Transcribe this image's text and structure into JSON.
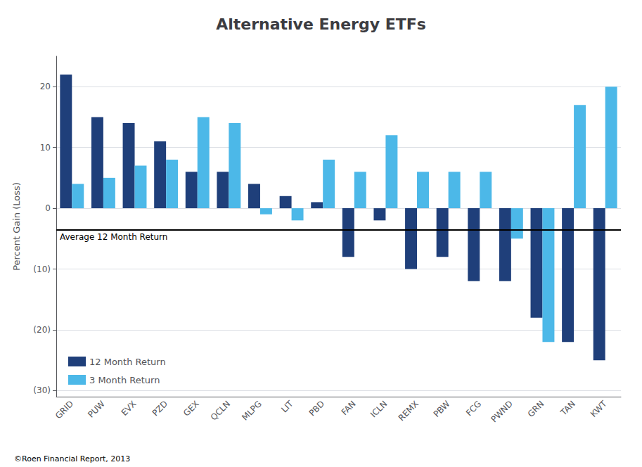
{
  "chart_data": {
    "type": "bar",
    "title": "Alternative Energy ETFs",
    "ylabel": "Percent Gain (Loss)",
    "categories": [
      "GRID",
      "PUW",
      "EVX",
      "PZD",
      "GEX",
      "QCLN",
      "MLPG",
      "LIT",
      "PBD",
      "FAN",
      "ICLN",
      "REMX",
      "PBW",
      "FCG",
      "PWND",
      "GRN",
      "TAN",
      "KWT"
    ],
    "series": [
      {
        "name": "12 Month Return",
        "color": "#1F3F7A",
        "values": [
          22,
          15,
          14,
          11,
          6,
          6,
          4,
          2,
          1,
          -8,
          -2,
          -10,
          -8,
          -12,
          -12,
          -18,
          -22,
          -25
        ]
      },
      {
        "name": "3 Month Return",
        "color": "#4CB8E8",
        "values": [
          4,
          5,
          7,
          8,
          15,
          14,
          -1,
          -2,
          8,
          6,
          12,
          6,
          6,
          6,
          -5,
          -22,
          17,
          20
        ]
      }
    ],
    "ylim": [
      -31,
      25
    ],
    "yticks": [
      {
        "value": -30,
        "label": "(30)"
      },
      {
        "value": -20,
        "label": "(20)"
      },
      {
        "value": -10,
        "label": "(10)"
      },
      0,
      10,
      20
    ],
    "grid": true,
    "legend": "lower left",
    "annotations": [
      {
        "text": "Average 12 Month Return",
        "y": -3.5,
        "color": "#000000"
      }
    ],
    "footnote": "©Roen Financial Report, 2013"
  }
}
